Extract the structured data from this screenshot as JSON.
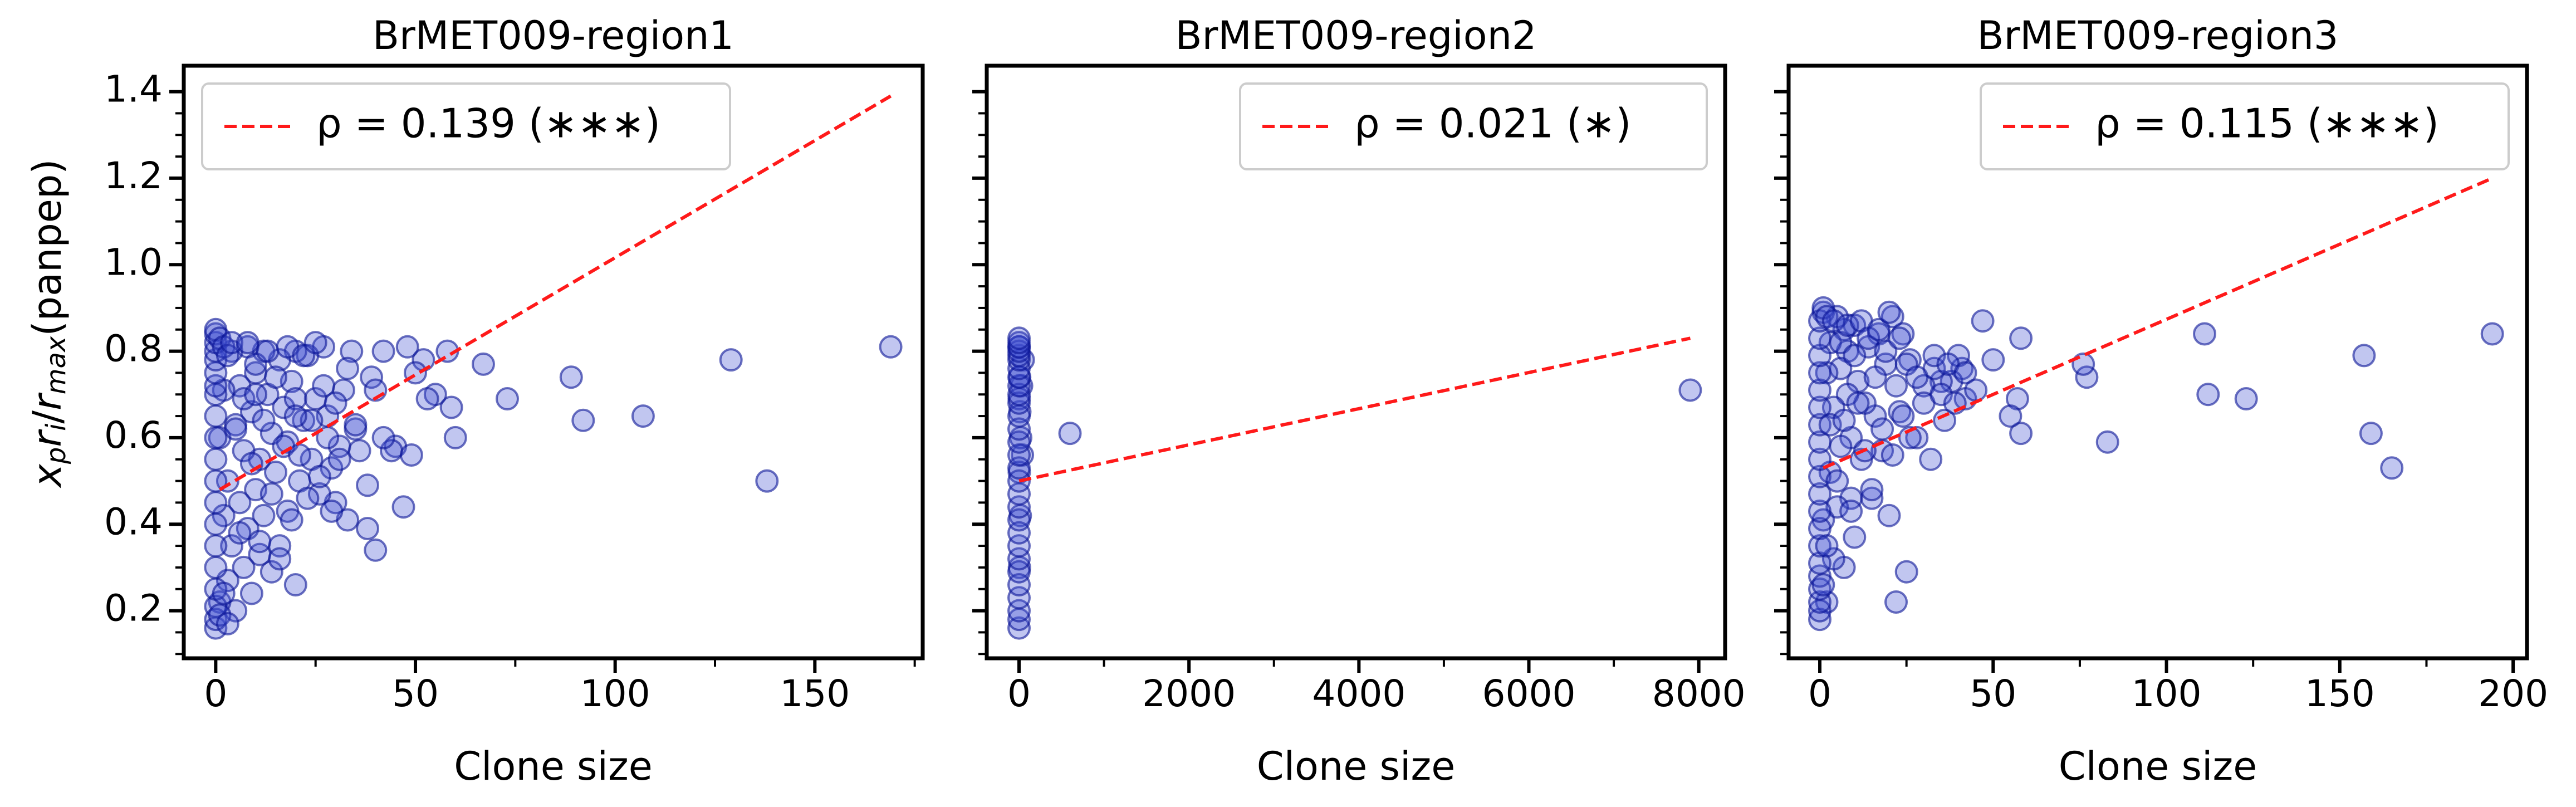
{
  "figure": {
    "ylabel_italic": "x",
    "ylabel_sub_p": "p",
    "ylabel_r1": "r",
    "ylabel_sub_i": "i",
    "ylabel_slash": "/",
    "ylabel_r2": "r",
    "ylabel_sub_max": "max",
    "ylabel_suffix": "(panpep)"
  },
  "chart_data": [
    {
      "type": "scatter",
      "title": "BrMET009-region1",
      "xlabel": "Clone size",
      "ylabel": "x_p r_i / r_max (panpep)",
      "xlim": [
        -8,
        177
      ],
      "ylim": [
        0.09,
        1.46
      ],
      "xticks": [
        0,
        50,
        100,
        150
      ],
      "xtick_labels": [
        "0",
        "50",
        "100",
        "150"
      ],
      "yticks": [
        0.2,
        0.4,
        0.6,
        0.8,
        1.0,
        1.2,
        1.4
      ],
      "ytick_labels": [
        "0.2",
        "0.4",
        "0.6",
        "0.8",
        "1.0",
        "1.2",
        "1.4"
      ],
      "point_color": "#3f4fd0",
      "point_edge_color": "#0a1496",
      "line_color": "#ff1a1a",
      "legend_label": "ρ = 0.139 (∗∗∗)",
      "legend_position": "upper left",
      "fit_line": {
        "x": [
          1,
          169
        ],
        "y": [
          0.48,
          1.39
        ]
      },
      "series": [
        {
          "x": [
            169,
            138,
            129,
            107,
            92,
            89,
            73,
            67,
            59,
            55,
            52,
            48,
            45,
            44,
            42,
            40,
            39,
            38,
            36,
            35,
            34,
            33,
            32,
            31,
            30,
            29,
            28,
            27,
            26,
            25,
            24,
            23,
            22,
            21,
            20,
            20,
            19,
            18,
            18,
            17,
            16,
            16,
            15,
            14,
            14,
            13,
            12,
            12,
            11,
            11,
            10,
            10,
            9,
            9,
            8,
            8,
            7,
            7,
            6,
            6,
            5,
            5,
            4,
            4,
            3,
            3,
            2,
            2,
            1,
            1,
            0,
            0,
            0,
            0,
            0,
            0,
            0,
            0,
            0,
            0,
            0,
            0,
            0,
            0,
            0,
            0,
            0,
            0,
            0,
            0,
            1,
            1,
            2,
            2,
            3,
            3,
            4,
            5,
            6,
            7,
            8,
            9,
            10,
            11,
            12,
            13,
            14,
            15,
            16,
            17,
            18,
            19,
            20,
            21,
            22,
            23,
            24,
            25,
            26,
            27,
            28,
            29,
            30,
            31,
            33,
            35,
            38,
            40,
            42,
            47,
            49,
            50,
            53,
            58,
            60,
            20,
            10
          ],
          "y": [
            0.81,
            0.5,
            0.78,
            0.65,
            0.64,
            0.74,
            0.69,
            0.77,
            0.67,
            0.7,
            0.78,
            0.81,
            0.58,
            0.57,
            0.8,
            0.34,
            0.74,
            0.49,
            0.57,
            0.62,
            0.8,
            0.41,
            0.71,
            0.58,
            0.45,
            0.53,
            0.65,
            0.81,
            0.47,
            0.69,
            0.55,
            0.79,
            0.64,
            0.5,
            0.26,
            0.8,
            0.73,
            0.43,
            0.59,
            0.67,
            0.35,
            0.78,
            0.52,
            0.61,
            0.29,
            0.7,
            0.42,
            0.8,
            0.55,
            0.33,
            0.75,
            0.48,
            0.24,
            0.66,
            0.39,
            0.81,
            0.57,
            0.3,
            0.72,
            0.45,
            0.2,
            0.63,
            0.35,
            0.8,
            0.5,
            0.27,
            0.71,
            0.42,
            0.22,
            0.6,
            0.16,
            0.18,
            0.21,
            0.25,
            0.3,
            0.35,
            0.4,
            0.45,
            0.5,
            0.55,
            0.6,
            0.65,
            0.7,
            0.72,
            0.75,
            0.78,
            0.8,
            0.82,
            0.84,
            0.85,
            0.83,
            0.19,
            0.81,
            0.24,
            0.79,
            0.17,
            0.82,
            0.62,
            0.38,
            0.69,
            0.82,
            0.54,
            0.77,
            0.36,
            0.64,
            0.8,
            0.47,
            0.74,
            0.32,
            0.58,
            0.81,
            0.41,
            0.69,
            0.56,
            0.79,
            0.46,
            0.64,
            0.82,
            0.51,
            0.72,
            0.6,
            0.43,
            0.68,
            0.55,
            0.76,
            0.63,
            0.39,
            0.71,
            0.6,
            0.44,
            0.56,
            0.75,
            0.69,
            0.8,
            0.6,
            0.65,
            0.7
          ]
        }
      ]
    },
    {
      "type": "scatter",
      "title": "BrMET009-region2",
      "xlabel": "Clone size",
      "ylabel": "",
      "xlim": [
        -380,
        8310
      ],
      "ylim": [
        0.09,
        1.46
      ],
      "xticks": [
        0,
        2000,
        4000,
        6000,
        8000
      ],
      "xtick_labels": [
        "0",
        "2000",
        "4000",
        "6000",
        "8000"
      ],
      "yticks": [
        0.2,
        0.4,
        0.6,
        0.8,
        1.0,
        1.2,
        1.4
      ],
      "ytick_labels": [],
      "point_color": "#3f4fd0",
      "point_edge_color": "#0a1496",
      "line_color": "#ff1a1a",
      "legend_label": "ρ = 0.021 (∗)",
      "legend_position": "upper right",
      "fit_line": {
        "x": [
          1,
          7900
        ],
        "y": [
          0.5,
          0.83
        ]
      },
      "series": [
        {
          "x": [
            7900,
            600,
            50,
            40,
            30,
            20,
            15,
            10,
            8,
            5,
            3,
            2,
            1,
            0,
            0,
            0,
            0,
            0,
            0,
            0,
            0,
            0,
            0,
            0,
            0,
            0,
            0,
            0,
            0,
            0,
            0,
            0,
            0,
            0,
            0,
            0,
            0,
            0,
            0,
            0,
            0,
            0
          ],
          "y": [
            0.71,
            0.61,
            0.78,
            0.56,
            0.72,
            0.6,
            0.42,
            0.66,
            0.74,
            0.3,
            0.52,
            0.69,
            0.81,
            0.16,
            0.18,
            0.2,
            0.23,
            0.26,
            0.29,
            0.32,
            0.35,
            0.38,
            0.41,
            0.44,
            0.47,
            0.5,
            0.53,
            0.56,
            0.59,
            0.62,
            0.65,
            0.68,
            0.7,
            0.72,
            0.74,
            0.76,
            0.78,
            0.79,
            0.8,
            0.81,
            0.82,
            0.83
          ]
        }
      ]
    },
    {
      "type": "scatter",
      "title": "BrMET009-region3",
      "xlabel": "Clone size",
      "ylabel": "",
      "xlim": [
        -9,
        204
      ],
      "ylim": [
        0.09,
        1.46
      ],
      "xticks": [
        0,
        50,
        100,
        150,
        200
      ],
      "xtick_labels": [
        "0",
        "50",
        "100",
        "150",
        "200"
      ],
      "yticks": [
        0.2,
        0.4,
        0.6,
        0.8,
        1.0,
        1.2,
        1.4
      ],
      "ytick_labels": [],
      "point_color": "#3f4fd0",
      "point_edge_color": "#0a1496",
      "line_color": "#ff1a1a",
      "legend_label": "ρ = 0.115 (∗∗∗)",
      "legend_position": "upper right",
      "fit_line": {
        "x": [
          1,
          194
        ],
        "y": [
          0.53,
          1.2
        ]
      },
      "series": [
        {
          "x": [
            194,
            165,
            159,
            157,
            123,
            112,
            111,
            83,
            77,
            76,
            58,
            58,
            57,
            47,
            42,
            41,
            40,
            38,
            36,
            35,
            33,
            32,
            30,
            28,
            26,
            25,
            24,
            23,
            22,
            21,
            20,
            19,
            18,
            17,
            16,
            15,
            14,
            13,
            12,
            11,
            10,
            10,
            9,
            9,
            8,
            8,
            7,
            7,
            6,
            6,
            5,
            5,
            4,
            4,
            3,
            3,
            2,
            2,
            1,
            1,
            0,
            0,
            0,
            0,
            0,
            0,
            0,
            0,
            0,
            0,
            0,
            0,
            0,
            0,
            0,
            0,
            0,
            0,
            0,
            0,
            1,
            1,
            2,
            2,
            3,
            4,
            5,
            6,
            7,
            8,
            9,
            10,
            11,
            12,
            13,
            14,
            15,
            16,
            17,
            18,
            19,
            20,
            21,
            22,
            23,
            24,
            25,
            26,
            28,
            30,
            33,
            35,
            37,
            39,
            42,
            45,
            50,
            55
          ],
          "y": [
            0.84,
            0.53,
            0.61,
            0.79,
            0.69,
            0.7,
            0.84,
            0.59,
            0.74,
            0.77,
            0.61,
            0.83,
            0.69,
            0.87,
            0.69,
            0.76,
            0.79,
            0.73,
            0.64,
            0.73,
            0.76,
            0.55,
            0.72,
            0.6,
            0.78,
            0.29,
            0.84,
            0.66,
            0.22,
            0.88,
            0.42,
            0.77,
            0.57,
            0.84,
            0.65,
            0.46,
            0.81,
            0.68,
            0.55,
            0.73,
            0.37,
            0.86,
            0.6,
            0.46,
            0.8,
            0.7,
            0.3,
            0.85,
            0.58,
            0.76,
            0.44,
            0.88,
            0.67,
            0.32,
            0.82,
            0.52,
            0.22,
            0.75,
            0.41,
            0.89,
            0.18,
            0.2,
            0.22,
            0.25,
            0.28,
            0.31,
            0.35,
            0.39,
            0.43,
            0.47,
            0.51,
            0.55,
            0.59,
            0.63,
            0.67,
            0.71,
            0.75,
            0.79,
            0.83,
            0.87,
            0.9,
            0.26,
            0.88,
            0.35,
            0.63,
            0.87,
            0.5,
            0.82,
            0.64,
            0.86,
            0.43,
            0.79,
            0.68,
            0.87,
            0.57,
            0.83,
            0.48,
            0.74,
            0.85,
            0.62,
            0.8,
            0.89,
            0.56,
            0.72,
            0.83,
            0.65,
            0.77,
            0.6,
            0.74,
            0.68,
            0.79,
            0.7,
            0.77,
            0.68,
            0.75,
            0.71,
            0.78,
            0.65
          ]
        }
      ]
    }
  ]
}
